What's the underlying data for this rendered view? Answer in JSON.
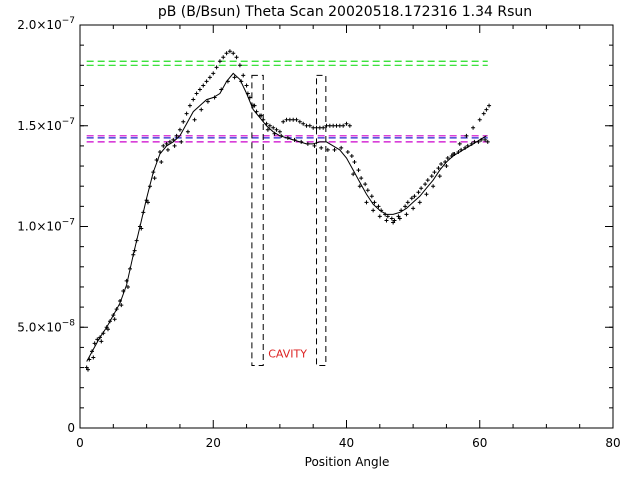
{
  "chart_data": {
    "type": "scatter",
    "title": "pB (B/Bsun) Theta Scan 20020518.172316 1.34 Rsun",
    "xlabel": "Position Angle",
    "ylabel": "",
    "xlim": [
      0,
      80
    ],
    "ylim": [
      0,
      2e-07
    ],
    "x_ticks": [
      0,
      20,
      40,
      60,
      80
    ],
    "x_tick_labels": [
      "0",
      "20",
      "40",
      "60",
      "80"
    ],
    "y_ticks": [
      0,
      5e-08,
      1e-07,
      1.5e-07,
      2e-07
    ],
    "y_tick_labels": [
      {
        "mant": "0",
        "exp": ""
      },
      {
        "mant": "5.0×10",
        "exp": "−8"
      },
      {
        "mant": "1.0×10",
        "exp": "−7"
      },
      {
        "mant": "1.5×10",
        "exp": "−7"
      },
      {
        "mant": "2.0×10",
        "exp": "−7"
      }
    ],
    "scan_points": [
      [
        1.0,
        3e-08
      ],
      [
        1.4,
        3.4e-08
      ],
      [
        1.8,
        3.8e-08
      ],
      [
        2.2,
        4.2e-08
      ],
      [
        2.6,
        4.4e-08
      ],
      [
        3.0,
        4.5e-08
      ],
      [
        3.5,
        4.7e-08
      ],
      [
        4.0,
        5e-08
      ],
      [
        4.5,
        5.3e-08
      ],
      [
        5.0,
        5.6e-08
      ],
      [
        5.5,
        5.9e-08
      ],
      [
        6.0,
        6.3e-08
      ],
      [
        6.5,
        6.8e-08
      ],
      [
        7.0,
        7.3e-08
      ],
      [
        7.5,
        7.9e-08
      ],
      [
        8.0,
        8.6e-08
      ],
      [
        8.5,
        9.3e-08
      ],
      [
        9.0,
        1e-07
      ],
      [
        9.5,
        1.07e-07
      ],
      [
        10.0,
        1.13e-07
      ],
      [
        10.5,
        1.2e-07
      ],
      [
        11.0,
        1.27e-07
      ],
      [
        11.5,
        1.33e-07
      ],
      [
        12.0,
        1.37e-07
      ],
      [
        12.5,
        1.4e-07
      ],
      [
        13.0,
        1.41e-07
      ],
      [
        13.5,
        1.42e-07
      ],
      [
        14.0,
        1.43e-07
      ],
      [
        14.5,
        1.45e-07
      ],
      [
        15.0,
        1.48e-07
      ],
      [
        15.5,
        1.52e-07
      ],
      [
        16.0,
        1.56e-07
      ],
      [
        16.5,
        1.6e-07
      ],
      [
        17.0,
        1.63e-07
      ],
      [
        17.5,
        1.66e-07
      ],
      [
        18.0,
        1.68e-07
      ],
      [
        18.5,
        1.7e-07
      ],
      [
        19.0,
        1.72e-07
      ],
      [
        19.5,
        1.74e-07
      ],
      [
        20.0,
        1.76e-07
      ],
      [
        20.5,
        1.79e-07
      ],
      [
        21.0,
        1.82e-07
      ],
      [
        21.5,
        1.84e-07
      ],
      [
        22.0,
        1.86e-07
      ],
      [
        22.5,
        1.87e-07
      ],
      [
        23.0,
        1.86e-07
      ],
      [
        23.5,
        1.84e-07
      ],
      [
        24.0,
        1.8e-07
      ],
      [
        24.5,
        1.75e-07
      ],
      [
        25.0,
        1.7e-07
      ],
      [
        25.5,
        1.64e-07
      ],
      [
        26.0,
        1.6e-07
      ],
      [
        26.5,
        1.57e-07
      ],
      [
        27.0,
        1.55e-07
      ],
      [
        27.5,
        1.53e-07
      ],
      [
        28.0,
        1.51e-07
      ],
      [
        28.5,
        1.5e-07
      ],
      [
        29.0,
        1.49e-07
      ],
      [
        29.5,
        1.48e-07
      ],
      [
        30.0,
        1.47e-07
      ],
      [
        30.5,
        1.52e-07
      ],
      [
        31.0,
        1.53e-07
      ],
      [
        31.5,
        1.53e-07
      ],
      [
        32.0,
        1.53e-07
      ],
      [
        32.5,
        1.53e-07
      ],
      [
        33.0,
        1.52e-07
      ],
      [
        33.5,
        1.51e-07
      ],
      [
        34.0,
        1.5e-07
      ],
      [
        34.5,
        1.5e-07
      ],
      [
        35.0,
        1.49e-07
      ],
      [
        35.5,
        1.49e-07
      ],
      [
        36.0,
        1.49e-07
      ],
      [
        36.5,
        1.49e-07
      ],
      [
        37.0,
        1.5e-07
      ],
      [
        37.5,
        1.5e-07
      ],
      [
        38.0,
        1.5e-07
      ],
      [
        38.5,
        1.5e-07
      ],
      [
        39.0,
        1.5e-07
      ],
      [
        39.5,
        1.5e-07
      ],
      [
        40.0,
        1.51e-07
      ],
      [
        40.5,
        1.5e-07
      ],
      [
        1.2,
        2.9e-08
      ],
      [
        2.0,
        3.5e-08
      ],
      [
        3.2,
        4.3e-08
      ],
      [
        4.2,
        4.9e-08
      ],
      [
        5.2,
        5.4e-08
      ],
      [
        6.2,
        6.1e-08
      ],
      [
        7.2,
        7e-08
      ],
      [
        8.2,
        8.8e-08
      ],
      [
        9.2,
        9.9e-08
      ],
      [
        10.2,
        1.12e-07
      ],
      [
        11.2,
        1.24e-07
      ],
      [
        12.2,
        1.32e-07
      ],
      [
        13.2,
        1.38e-07
      ],
      [
        14.2,
        1.4e-07
      ],
      [
        15.2,
        1.42e-07
      ],
      [
        16.2,
        1.47e-07
      ],
      [
        17.2,
        1.53e-07
      ],
      [
        18.2,
        1.58e-07
      ],
      [
        19.2,
        1.62e-07
      ],
      [
        20.2,
        1.64e-07
      ],
      [
        21.2,
        1.68e-07
      ],
      [
        22.2,
        1.72e-07
      ],
      [
        23.2,
        1.74e-07
      ],
      [
        24.2,
        1.72e-07
      ],
      [
        25.2,
        1.66e-07
      ],
      [
        26.2,
        1.6e-07
      ],
      [
        27.2,
        1.55e-07
      ],
      [
        28.2,
        1.48e-07
      ],
      [
        29.2,
        1.46e-07
      ],
      [
        30.2,
        1.45e-07
      ],
      [
        31.2,
        1.44e-07
      ],
      [
        32.2,
        1.43e-07
      ],
      [
        33.2,
        1.42e-07
      ],
      [
        34.2,
        1.41e-07
      ],
      [
        35.2,
        1.4e-07
      ],
      [
        36.2,
        1.39e-07
      ],
      [
        37.2,
        1.38e-07
      ],
      [
        38.2,
        1.38e-07
      ],
      [
        39.2,
        1.39e-07
      ],
      [
        40.2,
        1.37e-07
      ],
      [
        40.8,
        1.35e-07
      ],
      [
        41.2,
        1.32e-07
      ],
      [
        41.8,
        1.28e-07
      ],
      [
        42.2,
        1.24e-07
      ],
      [
        42.8,
        1.21e-07
      ],
      [
        43.2,
        1.18e-07
      ],
      [
        43.8,
        1.15e-07
      ],
      [
        44.2,
        1.12e-07
      ],
      [
        44.8,
        1.1e-07
      ],
      [
        45.2,
        1.08e-07
      ],
      [
        45.8,
        1.06e-07
      ],
      [
        46.2,
        1.05e-07
      ],
      [
        46.8,
        1.04e-07
      ],
      [
        47.2,
        1.03e-07
      ],
      [
        47.8,
        1.05e-07
      ],
      [
        48.2,
        1.08e-07
      ],
      [
        48.8,
        1.1e-07
      ],
      [
        49.2,
        1.12e-07
      ],
      [
        49.8,
        1.14e-07
      ],
      [
        50.2,
        1.15e-07
      ],
      [
        50.8,
        1.17e-07
      ],
      [
        51.2,
        1.19e-07
      ],
      [
        51.8,
        1.21e-07
      ],
      [
        52.2,
        1.23e-07
      ],
      [
        52.8,
        1.25e-07
      ],
      [
        53.2,
        1.27e-07
      ],
      [
        53.8,
        1.29e-07
      ],
      [
        54.2,
        1.31e-07
      ],
      [
        54.8,
        1.32e-07
      ],
      [
        55.2,
        1.34e-07
      ],
      [
        55.8,
        1.35e-07
      ],
      [
        56.2,
        1.36e-07
      ],
      [
        56.8,
        1.37e-07
      ],
      [
        57.2,
        1.38e-07
      ],
      [
        57.8,
        1.39e-07
      ],
      [
        58.2,
        1.4e-07
      ],
      [
        58.8,
        1.41e-07
      ],
      [
        59.2,
        1.42e-07
      ],
      [
        59.8,
        1.42e-07
      ],
      [
        60.2,
        1.43e-07
      ],
      [
        60.8,
        1.43e-07
      ],
      [
        61.2,
        1.42e-07
      ],
      [
        41.0,
        1.26e-07
      ],
      [
        42.0,
        1.2e-07
      ],
      [
        43.0,
        1.12e-07
      ],
      [
        44.0,
        1.08e-07
      ],
      [
        45.0,
        1.05e-07
      ],
      [
        46.0,
        1.03e-07
      ],
      [
        47.0,
        1.02e-07
      ],
      [
        48.0,
        1.04e-07
      ],
      [
        49.0,
        1.06e-07
      ],
      [
        50.0,
        1.09e-07
      ],
      [
        51.0,
        1.12e-07
      ],
      [
        52.0,
        1.16e-07
      ],
      [
        53.0,
        1.2e-07
      ],
      [
        54.0,
        1.25e-07
      ],
      [
        55.0,
        1.3e-07
      ],
      [
        56.0,
        1.36e-07
      ],
      [
        57.0,
        1.41e-07
      ],
      [
        58.0,
        1.45e-07
      ],
      [
        59.0,
        1.49e-07
      ],
      [
        60.0,
        1.53e-07
      ],
      [
        60.6,
        1.56e-07
      ],
      [
        61.0,
        1.58e-07
      ],
      [
        61.4,
        1.6e-07
      ]
    ],
    "smooth_curve": [
      [
        1.0,
        3.3e-08
      ],
      [
        2.0,
        3.9e-08
      ],
      [
        3.0,
        4.5e-08
      ],
      [
        4.0,
        5e-08
      ],
      [
        5.0,
        5.6e-08
      ],
      [
        6.0,
        6.2e-08
      ],
      [
        7.0,
        7.1e-08
      ],
      [
        8.0,
        8.6e-08
      ],
      [
        9.0,
        1e-07
      ],
      [
        10.0,
        1.14e-07
      ],
      [
        11.0,
        1.27e-07
      ],
      [
        12.0,
        1.36e-07
      ],
      [
        13.0,
        1.4e-07
      ],
      [
        14.0,
        1.42e-07
      ],
      [
        15.0,
        1.45e-07
      ],
      [
        16.0,
        1.51e-07
      ],
      [
        17.0,
        1.57e-07
      ],
      [
        18.0,
        1.6e-07
      ],
      [
        19.0,
        1.63e-07
      ],
      [
        20.0,
        1.64e-07
      ],
      [
        21.0,
        1.66e-07
      ],
      [
        22.0,
        1.72e-07
      ],
      [
        23.0,
        1.76e-07
      ],
      [
        24.0,
        1.73e-07
      ],
      [
        25.0,
        1.66e-07
      ],
      [
        26.0,
        1.58e-07
      ],
      [
        27.0,
        1.54e-07
      ],
      [
        28.0,
        1.5e-07
      ],
      [
        29.0,
        1.47e-07
      ],
      [
        30.0,
        1.45e-07
      ],
      [
        31.0,
        1.44e-07
      ],
      [
        32.0,
        1.43e-07
      ],
      [
        33.0,
        1.42e-07
      ],
      [
        34.0,
        1.41e-07
      ],
      [
        35.0,
        1.41e-07
      ],
      [
        36.0,
        1.42e-07
      ],
      [
        37.0,
        1.42e-07
      ],
      [
        38.0,
        1.4e-07
      ],
      [
        39.0,
        1.38e-07
      ],
      [
        40.0,
        1.34e-07
      ],
      [
        41.0,
        1.28e-07
      ],
      [
        42.0,
        1.22e-07
      ],
      [
        43.0,
        1.16e-07
      ],
      [
        44.0,
        1.11e-07
      ],
      [
        45.0,
        1.08e-07
      ],
      [
        46.0,
        1.06e-07
      ],
      [
        47.0,
        1.06e-07
      ],
      [
        48.0,
        1.07e-07
      ],
      [
        49.0,
        1.09e-07
      ],
      [
        50.0,
        1.12e-07
      ],
      [
        51.0,
        1.15e-07
      ],
      [
        52.0,
        1.19e-07
      ],
      [
        53.0,
        1.23e-07
      ],
      [
        54.0,
        1.28e-07
      ],
      [
        55.0,
        1.32e-07
      ],
      [
        56.0,
        1.35e-07
      ],
      [
        57.0,
        1.37e-07
      ],
      [
        58.0,
        1.39e-07
      ],
      [
        59.0,
        1.41e-07
      ],
      [
        60.0,
        1.43e-07
      ],
      [
        61.0,
        1.45e-07
      ]
    ],
    "reference_lines": [
      {
        "y": 1.82e-07,
        "color": "#22dd22"
      },
      {
        "y": 1.8e-07,
        "color": "#22dd22"
      },
      {
        "y": 1.45e-07,
        "color": "#cc00cc"
      },
      {
        "y": 1.44e-07,
        "color": "#2222cc"
      },
      {
        "y": 1.42e-07,
        "color": "#cc00cc"
      }
    ],
    "cavity_boundaries": [
      {
        "x0": 25.8,
        "x1": 27.5,
        "y0": 3.1e-08,
        "y1": 1.75e-07
      },
      {
        "x0": 35.5,
        "x1": 36.9,
        "y0": 3.1e-08,
        "y1": 1.75e-07
      }
    ],
    "annotation": {
      "text": "CAVITY",
      "x": 30.5,
      "y": 3.4e-08,
      "color": "#dd2222"
    },
    "colors": {
      "points": "#000000",
      "curve": "#000000",
      "axes": "#000000",
      "background": "#ffffff"
    }
  }
}
